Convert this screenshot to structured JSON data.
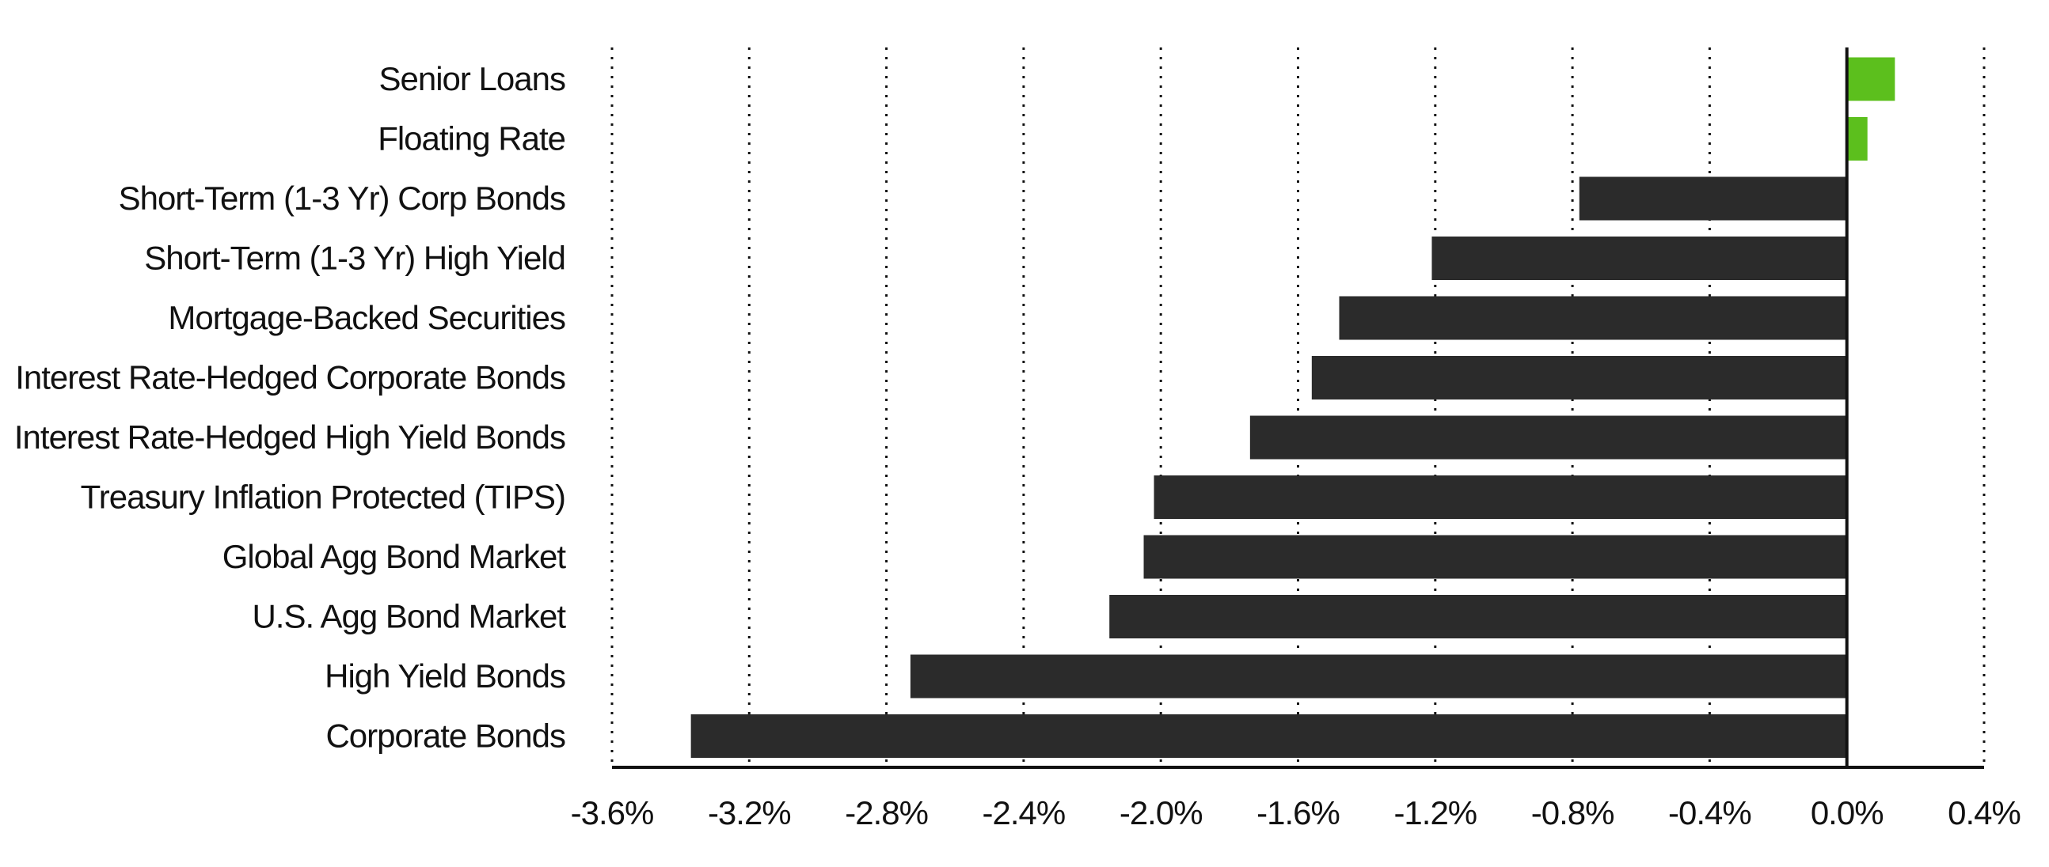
{
  "chart_data": {
    "type": "bar",
    "orientation": "horizontal",
    "title": "",
    "xlabel": "",
    "ylabel": "",
    "categories": [
      "Senior Loans",
      "Floating Rate",
      "Short-Term (1-3 Yr) Corp Bonds",
      "Short-Term (1-3 Yr) High Yield",
      "Mortgage-Backed Securities",
      "Interest Rate-Hedged Corporate Bonds",
      "Interest Rate-Hedged High Yield Bonds",
      "Treasury Inflation Protected (TIPS)",
      "Global Agg Bond Market",
      "U.S. Agg Bond Market",
      "High Yield Bonds",
      "Corporate Bonds"
    ],
    "values": [
      0.14,
      0.06,
      -0.78,
      -1.21,
      -1.48,
      -1.56,
      -1.74,
      -2.02,
      -2.05,
      -2.15,
      -2.73,
      -3.37
    ],
    "unit": "%",
    "xlim": [
      -3.6,
      0.4
    ],
    "xticks": [
      -3.6,
      -3.2,
      -2.8,
      -2.4,
      -2.0,
      -1.6,
      -1.2,
      -0.8,
      -0.4,
      0.0,
      0.4
    ],
    "xtick_labels": [
      "-3.6%",
      "-3.2%",
      "-2.8%",
      "-2.4%",
      "-2.0%",
      "-1.6%",
      "-1.2%",
      "-0.8%",
      "-0.4%",
      "0.0%",
      "0.4%"
    ],
    "grid": "vertical dotted",
    "legend": "none",
    "colors": {
      "positive": "#5cbf1d",
      "negative": "#2b2b2b",
      "axis": "#111111",
      "text": "#111111"
    }
  }
}
